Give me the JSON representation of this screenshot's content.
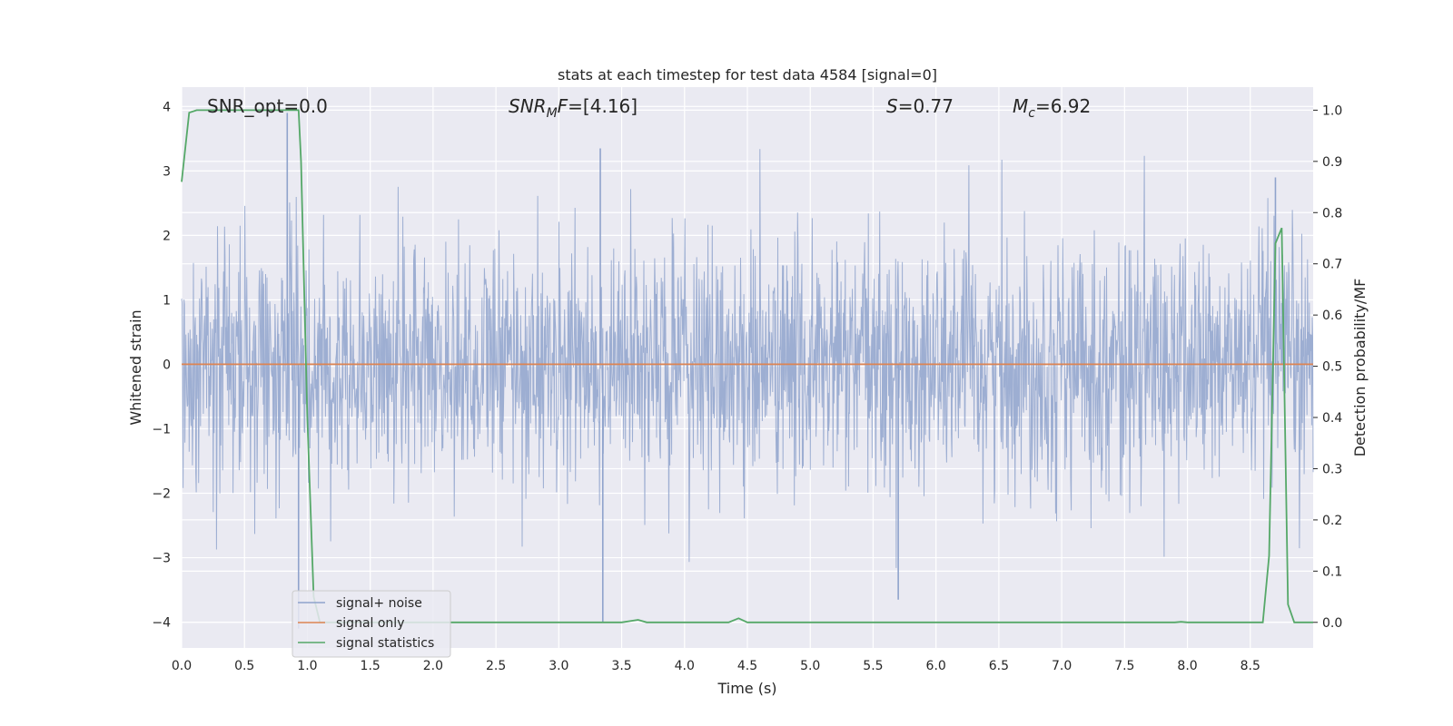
{
  "chart_data": {
    "type": "line",
    "title": "stats at each timestep for test data 4584 [signal=0]",
    "xlabel": "Time (s)",
    "ylabel": "Whitened strain",
    "y2label": "Detection probability/MF",
    "xlim": [
      0.0,
      9.0
    ],
    "ylim": [
      -4.4,
      4.3
    ],
    "y2lim": [
      -0.05,
      1.045
    ],
    "grid": true,
    "legend_position": "lower-left",
    "x_ticks": [
      "0.0",
      "0.5",
      "1.0",
      "1.5",
      "2.0",
      "2.5",
      "3.0",
      "3.5",
      "4.0",
      "4.5",
      "5.0",
      "5.5",
      "6.0",
      "6.5",
      "7.0",
      "7.5",
      "8.0",
      "8.5"
    ],
    "x_tick_values": [
      0.0,
      0.5,
      1.0,
      1.5,
      2.0,
      2.5,
      3.0,
      3.5,
      4.0,
      4.5,
      5.0,
      5.5,
      6.0,
      6.5,
      7.0,
      7.5,
      8.0,
      8.5
    ],
    "y_ticks": [
      "4",
      "3",
      "2",
      "1",
      "0",
      "−1",
      "−2",
      "−3",
      "−4"
    ],
    "y_tick_values": [
      4,
      3,
      2,
      1,
      0,
      -1,
      -2,
      -3,
      -4
    ],
    "y2_ticks": [
      "1.0",
      "0.9",
      "0.8",
      "0.7",
      "0.6",
      "0.5",
      "0.4",
      "0.3",
      "0.2",
      "0.1",
      "0.0"
    ],
    "y2_tick_values": [
      1.0,
      0.9,
      0.8,
      0.7,
      0.6,
      0.5,
      0.4,
      0.3,
      0.2,
      0.1,
      0.0
    ],
    "annotations": {
      "snr_opt": "SNR_opt=0.0",
      "snr_mf": "=[4.16]",
      "s_value": "=0.77",
      "mc_value": "=6.92"
    },
    "legend": [
      {
        "label": "signal+ noise",
        "color": "#8fa3cc"
      },
      {
        "label": "signal only",
        "color": "#dd8452"
      },
      {
        "label": "signal statistics",
        "color": "#55a868"
      }
    ],
    "series": [
      {
        "name": "signal+ noise",
        "axis": "left",
        "color": "#8fa3cc",
        "rendering": "dense Gaussian noise, ~std 1, range approx -4.0 to 3.9",
        "notable_peaks": [
          {
            "x": 0.84,
            "y": 3.9
          },
          {
            "x": 0.93,
            "y": -4.1
          },
          {
            "x": 3.33,
            "y": 3.35
          },
          {
            "x": 3.35,
            "y": -4.0
          },
          {
            "x": 5.7,
            "y": -3.65
          },
          {
            "x": 8.7,
            "y": 2.9
          }
        ]
      },
      {
        "name": "signal only",
        "axis": "left",
        "color": "#dd8452",
        "x": [
          0.0,
          9.0
        ],
        "y": [
          0.0,
          0.0
        ]
      },
      {
        "name": "signal statistics",
        "axis": "right",
        "color": "#55a868",
        "x": [
          0.0,
          0.06,
          0.12,
          0.5,
          0.9,
          0.93,
          0.95,
          1.0,
          1.05,
          1.1,
          3.5,
          3.63,
          3.7,
          4.35,
          4.43,
          4.5,
          7.9,
          7.95,
          8.0,
          8.6,
          8.65,
          8.7,
          8.75,
          8.8,
          8.85,
          8.9,
          9.0
        ],
        "y": [
          0.86,
          0.995,
          1.0,
          1.0,
          1.0,
          1.0,
          0.9,
          0.4,
          0.05,
          0.0,
          0.0,
          0.005,
          0.0,
          0.0,
          0.008,
          0.0,
          0.0,
          0.001,
          0.0,
          0.0,
          0.13,
          0.74,
          0.77,
          0.035,
          0.0,
          0.0,
          0.0
        ]
      }
    ]
  }
}
